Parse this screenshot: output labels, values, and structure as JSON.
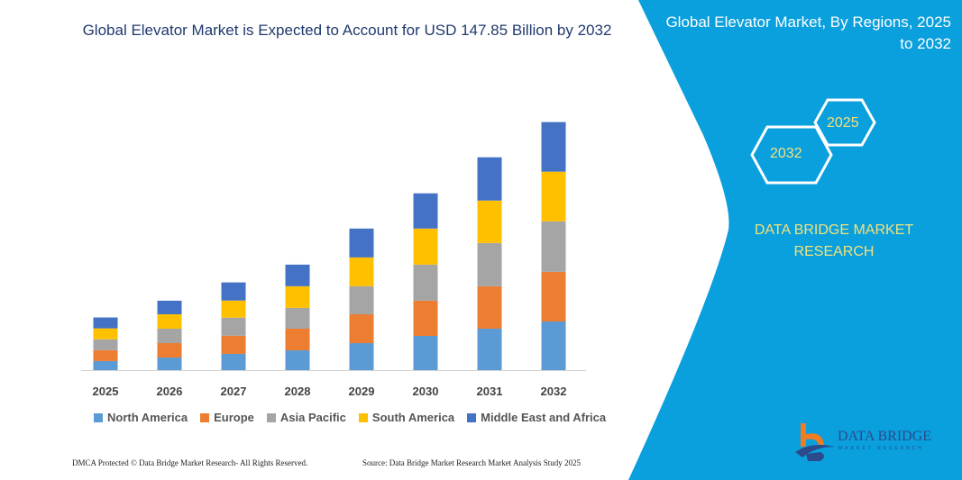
{
  "title": "Global Elevator Market is Expected to Account for USD 147.85 Billion by 2032",
  "side_panel": {
    "title": "Global Elevator Market, By Regions, 2025 to 2032",
    "hex_labels": [
      "2025",
      "2032"
    ],
    "brand": "DATA BRIDGE MARKET RESEARCH",
    "logo_text": "DATA BRIDGE",
    "logo_sub": "MARKET RESEARCH",
    "color": "#0a9fdd"
  },
  "footer": {
    "left": "DMCA Protected © Data Bridge Market Research-  All Rights Reserved.",
    "right": "Source: Data Bridge Market Research  Market Analysis Study 2025"
  },
  "chart_data": {
    "type": "bar",
    "stacked": true,
    "title": "Global Elevator Market is Expected to Account for USD 147.85 Billion by 2032",
    "xlabel": "",
    "ylabel": "",
    "ylim": [
      0,
      160
    ],
    "grid": false,
    "legend_position": "bottom",
    "categories": [
      "2025",
      "2026",
      "2027",
      "2028",
      "2029",
      "2030",
      "2031",
      "2032"
    ],
    "series": [
      {
        "name": "North America",
        "color": "#5b9bd5",
        "values": [
          5.4,
          7.5,
          9.7,
          11.8,
          16.1,
          20.4,
          24.7,
          29.0
        ]
      },
      {
        "name": "Europe",
        "color": "#ed7d31",
        "values": [
          6.5,
          8.6,
          10.8,
          12.9,
          17.2,
          21.0,
          25.3,
          29.6
        ]
      },
      {
        "name": "Asia Pacific",
        "color": "#a5a5a5",
        "values": [
          6.5,
          8.6,
          10.8,
          12.4,
          16.7,
          21.5,
          25.8,
          30.1
        ]
      },
      {
        "name": "South America",
        "color": "#ffc000",
        "values": [
          6.5,
          8.6,
          10.2,
          12.9,
          17.2,
          21.5,
          25.3,
          29.6
        ]
      },
      {
        "name": "Middle East and Africa",
        "color": "#4472c4",
        "values": [
          6.5,
          8.1,
          10.8,
          12.9,
          17.2,
          21.0,
          25.8,
          29.6
        ]
      }
    ]
  }
}
